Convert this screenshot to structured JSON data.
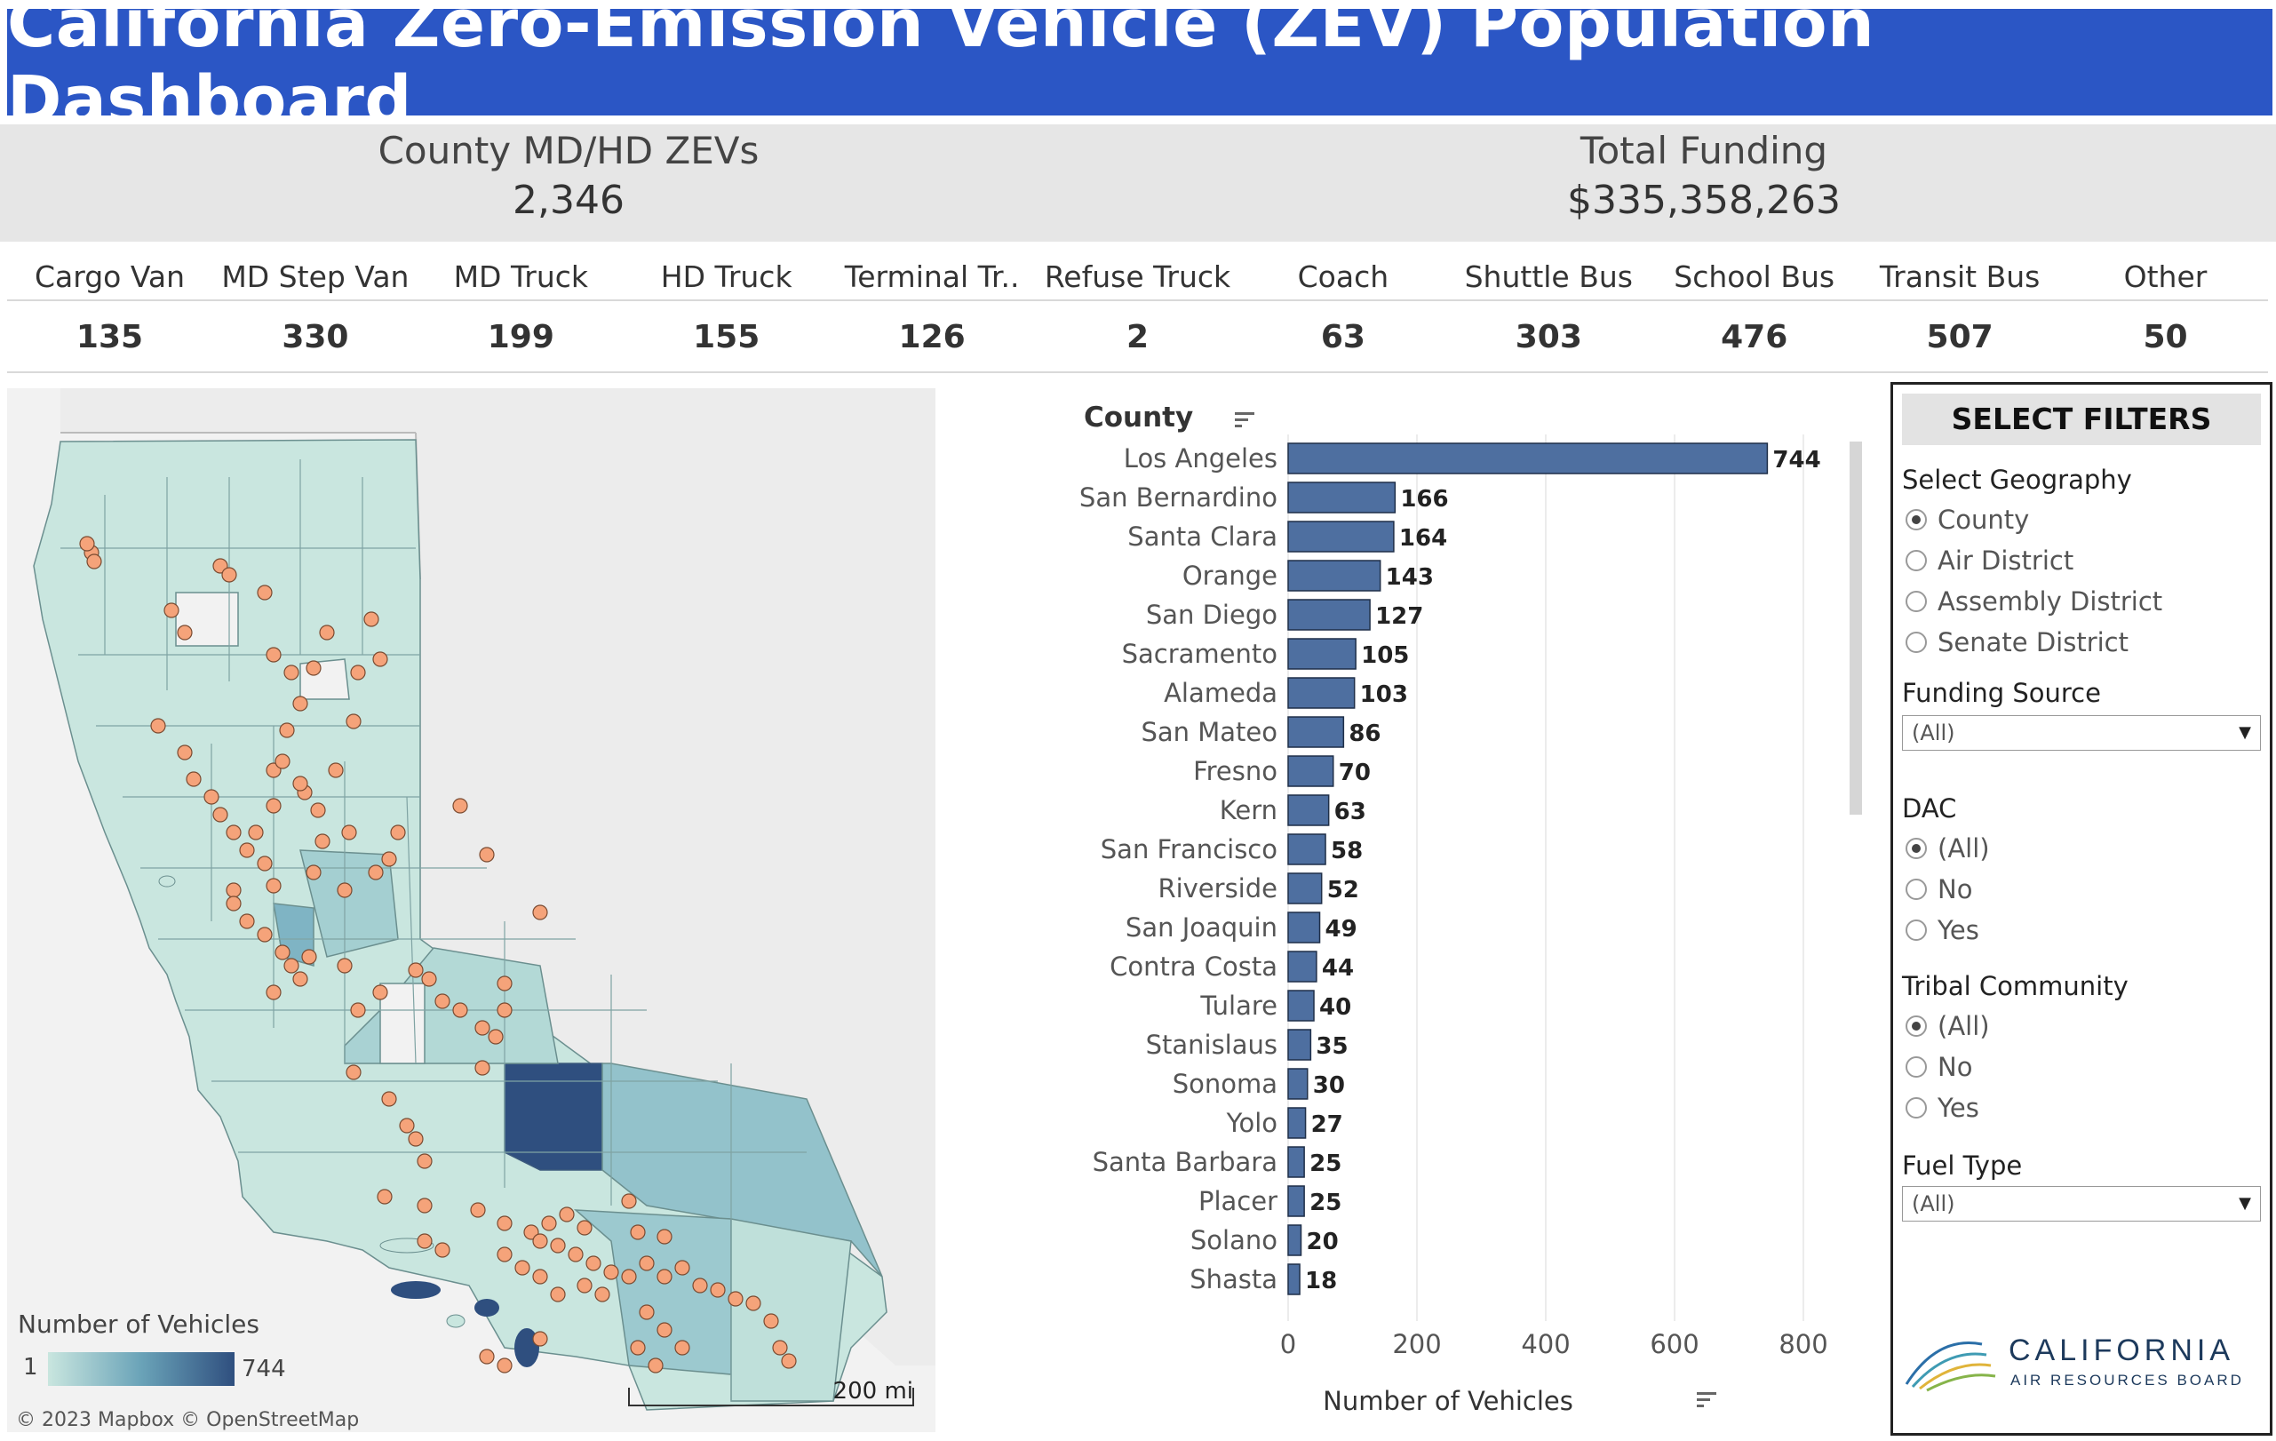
{
  "header": {
    "title": "California Zero-Emission Vehicle (ZEV) Population Dashboard"
  },
  "kpis": {
    "vehicles_label": "County MD/HD ZEVs",
    "vehicles_value": "2,346",
    "funding_label": "Total Funding",
    "funding_value": "$335,358,263"
  },
  "categories": [
    {
      "label": "Cargo Van",
      "value": "135"
    },
    {
      "label": "MD Step Van",
      "value": "330"
    },
    {
      "label": "MD Truck",
      "value": "199"
    },
    {
      "label": "HD Truck",
      "value": "155"
    },
    {
      "label": "Terminal Tr..",
      "value": "126"
    },
    {
      "label": "Refuse Truck",
      "value": "2"
    },
    {
      "label": "Coach",
      "value": "63"
    },
    {
      "label": "Shuttle Bus",
      "value": "303"
    },
    {
      "label": "School Bus",
      "value": "476"
    },
    {
      "label": "Transit Bus",
      "value": "507"
    },
    {
      "label": "Other",
      "value": "50"
    }
  ],
  "map": {
    "legend_title": "Number of Vehicles",
    "legend_min": "1",
    "legend_max": "744",
    "scale_label": "200 mi",
    "attribution": "© 2023 Mapbox  © OpenStreetMap",
    "colors": {
      "low": "#c9e6df",
      "mid": "#7fb4c4",
      "high": "#2f4f7f",
      "point": "#f5a37a"
    }
  },
  "chart_data": {
    "type": "bar",
    "orientation": "horizontal",
    "title": "County",
    "xlabel": "Number of Vehicles",
    "ylabel": "County",
    "xlim": [
      0,
      800
    ],
    "xticks": [
      "0",
      "200",
      "400",
      "600",
      "800"
    ],
    "categories": [
      "Los Angeles",
      "San Bernardino",
      "Santa Clara",
      "Orange",
      "San Diego",
      "Sacramento",
      "Alameda",
      "San Mateo",
      "Fresno",
      "Kern",
      "San Francisco",
      "Riverside",
      "San Joaquin",
      "Contra Costa",
      "Tulare",
      "Stanislaus",
      "Sonoma",
      "Yolo",
      "Santa Barbara",
      "Placer",
      "Solano",
      "Shasta"
    ],
    "values": [
      744,
      166,
      164,
      143,
      127,
      105,
      103,
      86,
      70,
      63,
      58,
      52,
      49,
      44,
      40,
      35,
      30,
      27,
      25,
      25,
      20,
      18
    ],
    "bar_color": "#4e6fa0",
    "grid": true
  },
  "filters": {
    "header": "SELECT FILTERS",
    "geography_title": "Select Geography",
    "geography_options": [
      "County",
      "Air District",
      "Assembly District",
      "Senate District"
    ],
    "funding_title": "Funding Source",
    "funding_value": "(All)",
    "dac_title": "DAC",
    "dac_options": [
      "(All)",
      "No",
      "Yes"
    ],
    "tribal_title": "Tribal Community",
    "tribal_options": [
      "(All)",
      "No",
      "Yes"
    ],
    "fuel_title": "Fuel Type",
    "fuel_value": "(All)"
  },
  "logo": {
    "name": "CALIFORNIA",
    "sub": "AIR RESOURCES BOARD"
  }
}
